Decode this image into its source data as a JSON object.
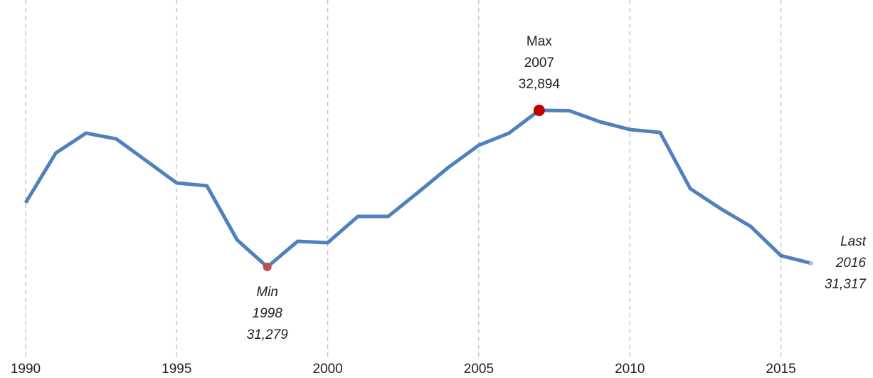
{
  "chart_data": {
    "type": "line",
    "x": [
      1990,
      1991,
      1992,
      1993,
      1994,
      1995,
      1996,
      1997,
      1998,
      1999,
      2000,
      2001,
      2002,
      2003,
      2004,
      2005,
      2006,
      2007,
      2008,
      2009,
      2010,
      2011,
      2012,
      2013,
      2014,
      2015,
      2016
    ],
    "series": [
      {
        "color": "#4f81bd",
        "values": [
          31940,
          32454,
          32659,
          32600,
          32373,
          32145,
          32116,
          31558,
          31279,
          31543,
          31529,
          31800,
          31800,
          32050,
          32307,
          32534,
          32659,
          32894,
          32890,
          32777,
          32696,
          32666,
          32087,
          31881,
          31697,
          31396,
          31317
        ]
      }
    ],
    "xlim": [
      1990,
      2016
    ],
    "xticks": [
      1990,
      1995,
      2000,
      2005,
      2010,
      2015
    ],
    "grid": true,
    "annotations": [
      {
        "text": "Max",
        "x": 2007,
        "y": 32894,
        "y_label": "32,894",
        "italic": false,
        "color": "#c00000"
      },
      {
        "text": "Min",
        "x": 1998,
        "y": 31279,
        "y_label": "31,279",
        "italic": true,
        "color": "#c0504d"
      },
      {
        "text": "Last",
        "x": 2016,
        "y": 31317,
        "y_label": "31,317",
        "italic": true,
        "color": "#9dc3e6"
      }
    ]
  }
}
